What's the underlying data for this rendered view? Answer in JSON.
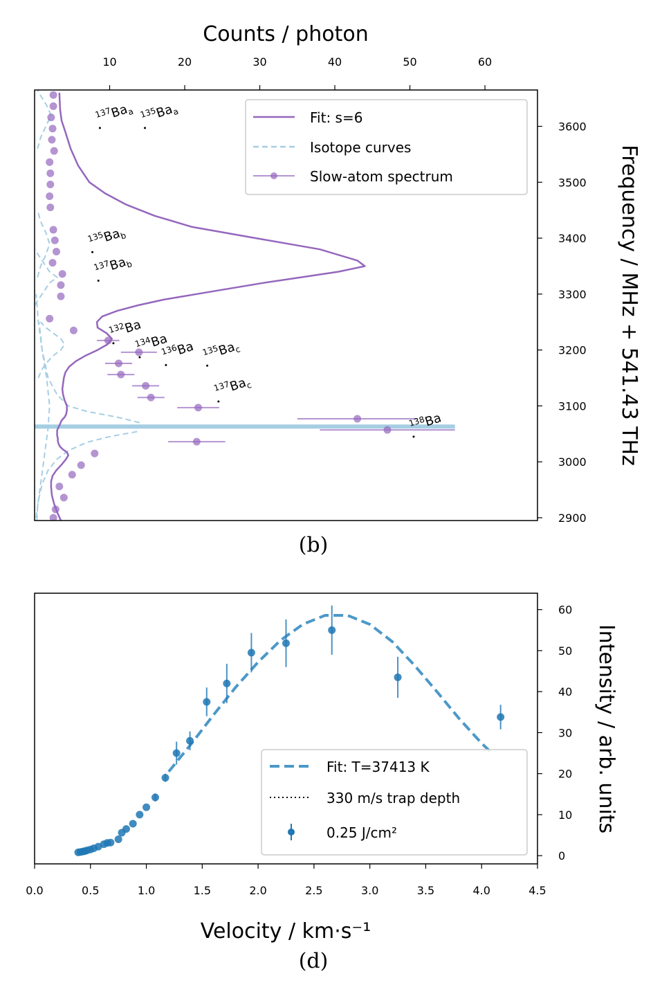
{
  "chart_data": [
    {
      "panel": "b",
      "type": "line",
      "caption": "(b)",
      "xlabel": "Counts / photon",
      "ylabel": "Frequency / MHz + 541.43 THz",
      "xlim": [
        0,
        67
      ],
      "ylim": [
        2895,
        3665
      ],
      "x_axis_position": "top",
      "y_axis_position": "right",
      "xticks": [
        10,
        20,
        30,
        40,
        50,
        60
      ],
      "yticks": [
        2900,
        3000,
        3100,
        3200,
        3300,
        3400,
        3500,
        3600
      ],
      "grid": false,
      "legend": {
        "position": "top-right",
        "entries": [
          "Fit: s=6",
          "Isotope curves",
          "Slow-atom spectrum"
        ]
      },
      "colors": {
        "fit": "#9467bd",
        "isotope": "#a6cee3",
        "data": "#9467bd"
      },
      "fit_curve": {
        "name": "Fit: s=6",
        "x": [
          3.5,
          3.0,
          2.6,
          2.3,
          2.2,
          2.2,
          2.4,
          2.9,
          3.6,
          4.2,
          4.5,
          4.3,
          3.8,
          3.4,
          3.2,
          3.1,
          3.1,
          3.0,
          3.0,
          3.0,
          3.0,
          3.1,
          3.2,
          3.3,
          3.4,
          3.5,
          3.6,
          3.8,
          4.0,
          4.2,
          4.3,
          4.3,
          4.0,
          3.8,
          3.7,
          3.8,
          3.9,
          4.1,
          4.6,
          5.5,
          6.8,
          8.4,
          9.7,
          10.3,
          9.6,
          8.4,
          8.3,
          9.0,
          11.0,
          13.8,
          17.2,
          21.6,
          26.0,
          30.5,
          35.5,
          40.5,
          44.0,
          43.0,
          38.0,
          29.5,
          21.0,
          16.0,
          12.2,
          9.4,
          7.3,
          5.8,
          4.8,
          4.1,
          3.6,
          3.4,
          3.3
        ],
        "y": [
          2895,
          2910,
          2925,
          2940,
          2955,
          2965,
          2975,
          2985,
          2995,
          3005,
          3012,
          3017,
          3022,
          3027,
          3032,
          3037,
          3042,
          3047,
          3050,
          3053,
          3056,
          3059,
          3062,
          3065,
          3068,
          3071,
          3074,
          3077,
          3080,
          3085,
          3092,
          3100,
          3110,
          3120,
          3130,
          3140,
          3150,
          3160,
          3170,
          3180,
          3190,
          3200,
          3210,
          3220,
          3230,
          3240,
          3250,
          3260,
          3270,
          3280,
          3290,
          3300,
          3310,
          3320,
          3330,
          3340,
          3350,
          3360,
          3380,
          3400,
          3420,
          3440,
          3460,
          3480,
          3500,
          3530,
          3560,
          3590,
          3610,
          3630,
          3660
        ]
      },
      "isotope_curves": [
        {
          "x": [
            0.3,
            0.4,
            0.7,
            1.0,
            1.4,
            1.8,
            2.0,
            1.6,
            1.0,
            0.6
          ],
          "y": [
            2895,
            2920,
            2950,
            2980,
            3020,
            3060,
            3100,
            3150,
            3200,
            3250
          ]
        },
        {
          "x": [
            0.2,
            0.5,
            1.0,
            1.8,
            3.0,
            4.5,
            7.0,
            10.0,
            14.0
          ],
          "y": [
            2900,
            2930,
            2960,
            2985,
            3005,
            3020,
            3035,
            3045,
            3055
          ]
        },
        {
          "x": [
            0.5,
            0.8,
            1.2,
            1.8,
            2.5,
            3.5,
            4.0,
            3.5,
            2.5,
            1.5,
            0.8
          ],
          "y": [
            3150,
            3160,
            3170,
            3180,
            3190,
            3200,
            3210,
            3220,
            3230,
            3240,
            3250
          ]
        },
        {
          "x": [
            0.4,
            0.8,
            1.5,
            2.0,
            1.5,
            0.8,
            0.4
          ],
          "y": [
            3330,
            3350,
            3370,
            3390,
            3410,
            3430,
            3450
          ]
        },
        {
          "x": [
            0.4,
            0.8,
            1.5,
            2.2,
            1.5,
            0.8,
            0.4
          ],
          "y": [
            3560,
            3580,
            3600,
            3620,
            3640,
            3655,
            3665
          ]
        },
        {
          "x": [
            0,
            1.0,
            2.0,
            3.0,
            2.0,
            1.0,
            0
          ],
          "y": [
            3280,
            3300,
            3320,
            3330,
            3340,
            3360,
            3380
          ]
        },
        {
          "x": [
            14.0,
            11.0,
            7.0,
            4.5,
            3.0,
            1.8,
            1.0,
            0.5,
            0.2
          ],
          "y": [
            3070,
            3080,
            3090,
            3100,
            3120,
            3150,
            3200,
            3250,
            3300
          ]
        }
      ],
      "isotope_peak": {
        "x_end": 56,
        "y": 3063
      },
      "data_points": {
        "name": "Slow-atom spectrum",
        "points": [
          {
            "x": 2.5,
            "y": 2900
          },
          {
            "x": 2.8,
            "y": 2915
          },
          {
            "x": 3.9,
            "y": 2936
          },
          {
            "x": 3.3,
            "y": 2956
          },
          {
            "x": 5.0,
            "y": 2977
          },
          {
            "x": 6.2,
            "y": 2994
          },
          {
            "x": 8.0,
            "y": 3015
          },
          {
            "x": 21.6,
            "y": 3036,
            "xerr": 3.8
          },
          {
            "x": 47.0,
            "y": 3057,
            "xerr": 9.0
          },
          {
            "x": 43.0,
            "y": 3077,
            "xerr": 8.0
          },
          {
            "x": 21.8,
            "y": 3097,
            "xerr": 2.8
          },
          {
            "x": 15.5,
            "y": 3115,
            "xerr": 1.8
          },
          {
            "x": 14.8,
            "y": 3136,
            "xerr": 1.8
          },
          {
            "x": 11.5,
            "y": 3156,
            "xerr": 1.8
          },
          {
            "x": 11.2,
            "y": 3176,
            "xerr": 1.8
          },
          {
            "x": 13.9,
            "y": 3196,
            "xerr": 2.4
          },
          {
            "x": 9.8,
            "y": 3217,
            "xerr": 1.5
          },
          {
            "x": 5.2,
            "y": 3235
          },
          {
            "x": 2.0,
            "y": 3256
          },
          {
            "x": 3.5,
            "y": 3296
          },
          {
            "x": 3.5,
            "y": 3316
          },
          {
            "x": 3.7,
            "y": 3336
          },
          {
            "x": 2.4,
            "y": 3356
          },
          {
            "x": 2.9,
            "y": 3376
          },
          {
            "x": 2.7,
            "y": 3396
          },
          {
            "x": 2.5,
            "y": 3415
          },
          {
            "x": 2.1,
            "y": 3455
          },
          {
            "x": 2.0,
            "y": 3475
          },
          {
            "x": 2.1,
            "y": 3496
          },
          {
            "x": 2.1,
            "y": 3516
          },
          {
            "x": 2.0,
            "y": 3536
          },
          {
            "x": 2.6,
            "y": 3556
          },
          {
            "x": 2.3,
            "y": 3576
          },
          {
            "x": 2.4,
            "y": 3596
          },
          {
            "x": 2.2,
            "y": 3616
          },
          {
            "x": 2.5,
            "y": 3636
          },
          {
            "x": 2.5,
            "y": 3656
          }
        ]
      },
      "isotope_labels": [
        {
          "mass": "137",
          "name": "Ba",
          "sub": "a",
          "x": 8.7,
          "y": 3597
        },
        {
          "mass": "135",
          "name": "Ba",
          "sub": "a",
          "x": 14.7,
          "y": 3597
        },
        {
          "mass": "135",
          "name": "Ba",
          "sub": "b",
          "x": 7.7,
          "y": 3375
        },
        {
          "mass": "137",
          "name": "Ba",
          "sub": "b",
          "x": 8.5,
          "y": 3324
        },
        {
          "mass": "132",
          "name": "Ba",
          "sub": "",
          "x": 10.5,
          "y": 3212
        },
        {
          "mass": "134",
          "name": "Ba",
          "sub": "",
          "x": 14.0,
          "y": 3187
        },
        {
          "mass": "136",
          "name": "Ba",
          "sub": "",
          "x": 17.5,
          "y": 3173
        },
        {
          "mass": "135",
          "name": "Ba",
          "sub": "c",
          "x": 23.0,
          "y": 3172
        },
        {
          "mass": "137",
          "name": "Ba",
          "sub": "c",
          "x": 24.5,
          "y": 3108
        },
        {
          "mass": "138",
          "name": "Ba",
          "sub": "",
          "x": 50.5,
          "y": 3045
        }
      ]
    },
    {
      "panel": "d",
      "type": "scatter",
      "caption": "(d)",
      "xlabel": "Velocity / km·s⁻¹",
      "ylabel": "Intensity / arb. units",
      "xlim": [
        0,
        4.5
      ],
      "ylim": [
        -2,
        64
      ],
      "y_axis_position": "right",
      "xticks": [
        "0.0",
        "0.5",
        "1.0",
        "1.5",
        "2.0",
        "2.5",
        "3.0",
        "3.5",
        "4.0",
        "4.5"
      ],
      "yticks": [
        0,
        10,
        20,
        30,
        40,
        50,
        60
      ],
      "grid": false,
      "legend": {
        "position": "lower-right",
        "entries": [
          "Fit: T=37413 K",
          "330 m/s trap depth",
          "0.25 J/cm²"
        ]
      },
      "colors": {
        "fit": "#4c98c8",
        "data": "#1f77b4"
      },
      "fit_curve": {
        "name": "Fit: T=37413 K",
        "x": [
          1.2,
          1.4,
          1.6,
          1.8,
          2.0,
          2.2,
          2.4,
          2.6,
          2.8,
          3.0,
          3.2,
          3.4,
          3.6,
          3.8,
          4.0,
          4.1
        ],
        "y": [
          20.5,
          27.2,
          34.3,
          41.1,
          47.2,
          52.5,
          56.4,
          58.6,
          58.6,
          56.4,
          52.2,
          46.4,
          40.0,
          33.4,
          27.4,
          24.8
        ]
      },
      "data_points": {
        "name": "0.25 J/cm²",
        "points": [
          {
            "x": 0.39,
            "y": 0.8
          },
          {
            "x": 0.41,
            "y": 0.9
          },
          {
            "x": 0.43,
            "y": 1.0
          },
          {
            "x": 0.45,
            "y": 1.1
          },
          {
            "x": 0.47,
            "y": 1.3
          },
          {
            "x": 0.5,
            "y": 1.5
          },
          {
            "x": 0.53,
            "y": 1.8
          },
          {
            "x": 0.57,
            "y": 2.2
          },
          {
            "x": 0.62,
            "y": 2.8
          },
          {
            "x": 0.65,
            "y": 3.1
          },
          {
            "x": 0.68,
            "y": 3.2
          },
          {
            "x": 0.75,
            "y": 4.0
          },
          {
            "x": 0.78,
            "y": 5.6
          },
          {
            "x": 0.82,
            "y": 6.5
          },
          {
            "x": 0.88,
            "y": 7.8
          },
          {
            "x": 0.94,
            "y": 10.0
          },
          {
            "x": 1.0,
            "y": 11.8
          },
          {
            "x": 1.08,
            "y": 14.2,
            "yerr": 1.0
          },
          {
            "x": 1.17,
            "y": 19.0,
            "yerr": 1.0
          },
          {
            "x": 1.27,
            "y": 25.0,
            "yerr": 2.8
          },
          {
            "x": 1.39,
            "y": 28.0,
            "yerr": 2.3
          },
          {
            "x": 1.54,
            "y": 37.5,
            "yerr": 3.5
          },
          {
            "x": 1.72,
            "y": 42.0,
            "yerr": 4.8
          },
          {
            "x": 1.94,
            "y": 49.5,
            "yerr": 4.8
          },
          {
            "x": 2.25,
            "y": 51.8,
            "yerr": 5.8
          },
          {
            "x": 2.66,
            "y": 55.0,
            "yerr": 6.0
          },
          {
            "x": 3.25,
            "y": 43.5,
            "yerr": 5.0
          },
          {
            "x": 4.17,
            "y": 33.8,
            "yerr": 3.0
          }
        ]
      }
    }
  ]
}
